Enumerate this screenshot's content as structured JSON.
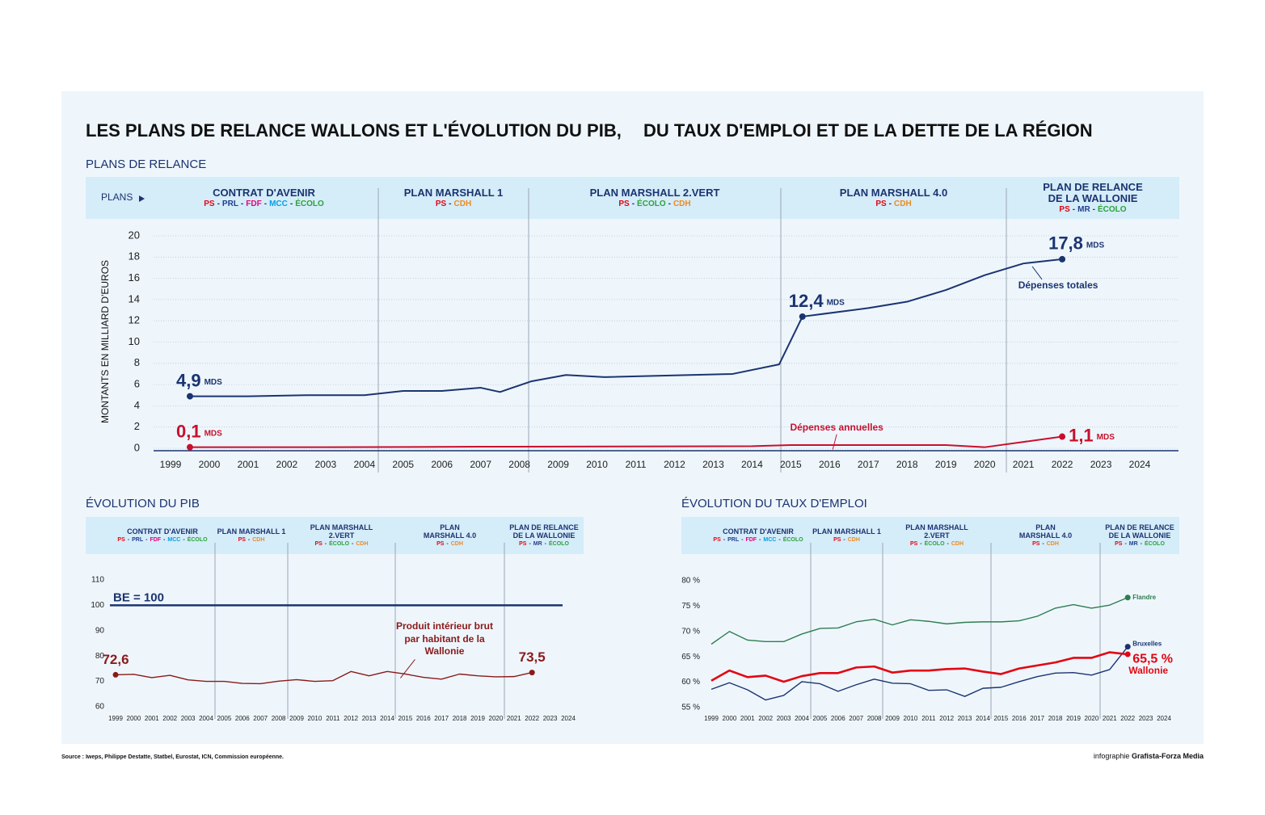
{
  "title": [
    "LES PLANS DE RELANCE WALLONS ET L'ÉVOLUTION DU PIB,",
    "DU TAUX D'EMPLOI ET DE LA DETTE DE LA RÉGION"
  ],
  "plans_label": "PLANS",
  "separator": "-",
  "plans": [
    {
      "name": "CONTRAT D'AVENIR",
      "parties": [
        {
          "name": "PS",
          "color": "#e30613"
        },
        {
          "name": "PRL",
          "color": "#1f3f8f"
        },
        {
          "name": "FDF",
          "color": "#e6007e"
        },
        {
          "name": "MCC",
          "color": "#00a0e3"
        },
        {
          "name": "ÉCOLO",
          "color": "#2aa33a"
        }
      ]
    },
    {
      "name": "PLAN MARSHALL 1",
      "parties": [
        {
          "name": "PS",
          "color": "#e30613"
        },
        {
          "name": "CDH",
          "color": "#f08a1c"
        }
      ]
    },
    {
      "name": "PLAN MARSHALL 2.VERT",
      "parties": [
        {
          "name": "PS",
          "color": "#e30613"
        },
        {
          "name": "ÉCOLO",
          "color": "#2aa33a"
        },
        {
          "name": "CDH",
          "color": "#f08a1c"
        }
      ]
    },
    {
      "name": "PLAN MARSHALL 4.0",
      "parties": [
        {
          "name": "PS",
          "color": "#e30613"
        },
        {
          "name": "CDH",
          "color": "#f08a1c"
        }
      ]
    },
    {
      "name": "PLAN DE RELANCE DE LA WALLONIE",
      "parties": [
        {
          "name": "PS",
          "color": "#e30613"
        },
        {
          "name": "MR",
          "color": "#1f3f8f"
        },
        {
          "name": "ÉCOLO",
          "color": "#2aa33a"
        }
      ]
    }
  ],
  "source": "Source : Iweps, Philippe Destatte, Statbel, Eurostat, ICN, Commission européenne.",
  "credit": [
    "infographie",
    "Grafista-Forza Media"
  ],
  "chart_data": [
    {
      "type": "line",
      "section": "PLANS DE RELANCE",
      "ylabel": "MONTANTS EN MILLIARD D'EUROS",
      "unit_label": "MDS",
      "grid": true,
      "xlim": [
        1999,
        2024
      ],
      "xticks": [
        1999,
        2000,
        2001,
        2002,
        2003,
        2004,
        2005,
        2006,
        2007,
        2008,
        2009,
        2010,
        2011,
        2012,
        2013,
        2014,
        2015,
        2016,
        2017,
        2018,
        2019,
        2020,
        2021,
        2022,
        2023,
        2024
      ],
      "ylim": [
        0,
        20
      ],
      "yticks": [
        0,
        2,
        4,
        6,
        8,
        10,
        12,
        14,
        16,
        18,
        20
      ],
      "series": [
        {
          "name": "Dépenses totales",
          "color": "#1b3470",
          "x": [
            1999.5,
            2001,
            2002.5,
            2004,
            2005,
            2006,
            2007,
            2007.5,
            2008.3,
            2009.2,
            2010.2,
            2013.5,
            2014.7,
            2015.3,
            2017,
            2018,
            2019,
            2020,
            2021,
            2022
          ],
          "values": [
            4.9,
            4.9,
            5.0,
            5.0,
            5.4,
            5.4,
            5.7,
            5.3,
            6.3,
            6.9,
            6.7,
            7.0,
            7.9,
            12.4,
            13.2,
            13.8,
            14.9,
            16.3,
            17.4,
            17.8
          ],
          "value_labels": [
            "4,9",
            null,
            null,
            null,
            null,
            null,
            null,
            null,
            null,
            null,
            null,
            null,
            null,
            "12,4",
            null,
            null,
            null,
            null,
            null,
            "17,8"
          ]
        },
        {
          "name": "Dépenses annuelles",
          "color": "#c8102e",
          "x": [
            1999.5,
            2003,
            2007,
            2014,
            2015,
            2019,
            2020,
            2021,
            2022
          ],
          "values": [
            0.1,
            0.1,
            0.15,
            0.2,
            0.3,
            0.3,
            0.1,
            0.6,
            1.1
          ],
          "value_labels": [
            "0,1",
            null,
            null,
            null,
            null,
            null,
            null,
            null,
            "1,1"
          ]
        }
      ]
    },
    {
      "type": "line",
      "section": "ÉVOLUTION DU PIB",
      "grid": false,
      "xlim": [
        1999,
        2024
      ],
      "xticks": [
        1999,
        2000,
        2001,
        2002,
        2003,
        2004,
        2005,
        2006,
        2007,
        2008,
        2009,
        2010,
        2011,
        2012,
        2013,
        2014,
        2015,
        2016,
        2017,
        2018,
        2019,
        2020,
        2021,
        2022,
        2023,
        2024
      ],
      "ylim": [
        60,
        110
      ],
      "yticks": [
        60,
        70,
        80,
        90,
        100,
        110
      ],
      "reference": {
        "value": 100,
        "label": "BE = 100",
        "color": "#1b3470"
      },
      "x": [
        1999,
        2000,
        2001,
        2002,
        2003,
        2004,
        2005,
        2006,
        2007,
        2008,
        2009,
        2010,
        2011,
        2012,
        2013,
        2014,
        2015,
        2016,
        2017,
        2018,
        2019,
        2020,
        2021,
        2022
      ],
      "series": [
        {
          "name": "Produit intérieur brut par habitant de la Wallonie",
          "color": "#8b1a1a",
          "values": [
            72.6,
            72.8,
            71.5,
            72.4,
            70.6,
            70.0,
            70.0,
            69.2,
            69.1,
            70.1,
            70.7,
            70.0,
            70.3,
            73.9,
            72.2,
            73.9,
            72.9,
            71.6,
            70.9,
            72.9,
            72.2,
            71.8,
            71.9,
            73.5
          ],
          "value_labels": [
            "72,6",
            null,
            null,
            null,
            null,
            null,
            null,
            null,
            null,
            null,
            null,
            null,
            null,
            null,
            null,
            null,
            null,
            null,
            null,
            null,
            null,
            null,
            null,
            "73,5"
          ]
        }
      ]
    },
    {
      "type": "line",
      "section": "ÉVOLUTION DU TAUX D'EMPLOI",
      "grid": false,
      "xlim": [
        1999,
        2024
      ],
      "xticks": [
        1999,
        2000,
        2001,
        2002,
        2003,
        2004,
        2005,
        2006,
        2007,
        2008,
        2009,
        2010,
        2011,
        2012,
        2013,
        2014,
        2015,
        2016,
        2017,
        2018,
        2019,
        2020,
        2021,
        2022,
        2023,
        2024
      ],
      "ylim": [
        55,
        80
      ],
      "yticks": [
        {
          "value": 55,
          "label": "55 %"
        },
        {
          "value": 60,
          "label": "60 %"
        },
        {
          "value": 65,
          "label": "65 %"
        },
        {
          "value": 70,
          "label": "70 %"
        },
        {
          "value": 75,
          "label": "75 %"
        },
        {
          "value": 80,
          "label": "80 %"
        }
      ],
      "x": [
        1999,
        2000,
        2001,
        2002,
        2003,
        2004,
        2005,
        2006,
        2007,
        2008,
        2009,
        2010,
        2011,
        2012,
        2013,
        2014,
        2015,
        2016,
        2017,
        2018,
        2019,
        2020,
        2021,
        2022
      ],
      "series": [
        {
          "name": "Flandre",
          "color": "#2e7d4f",
          "values": [
            67.5,
            70.0,
            68.3,
            68.0,
            68.0,
            69.5,
            70.6,
            70.7,
            71.9,
            72.4,
            71.3,
            72.3,
            72.0,
            71.5,
            71.8,
            71.9,
            71.9,
            72.1,
            73.0,
            74.6,
            75.3,
            74.6,
            75.2,
            76.7
          ]
        },
        {
          "name": "Bruxelles",
          "color": "#1b3470",
          "values": [
            58.6,
            59.9,
            58.5,
            56.5,
            57.4,
            60.1,
            59.7,
            58.2,
            59.5,
            60.6,
            59.8,
            59.7,
            58.4,
            58.5,
            57.2,
            58.8,
            59.0,
            60.1,
            61.1,
            61.8,
            61.9,
            61.4,
            62.5,
            67.0
          ]
        },
        {
          "name": "Wallonie",
          "color": "#e30613",
          "values": [
            60.3,
            62.3,
            61.0,
            61.3,
            60.1,
            61.2,
            61.8,
            61.8,
            62.9,
            63.1,
            61.9,
            62.3,
            62.3,
            62.6,
            62.7,
            62.1,
            61.6,
            62.7,
            63.3,
            63.9,
            64.8,
            64.8,
            65.9,
            65.5
          ],
          "value_labels": [
            null,
            null,
            null,
            null,
            null,
            null,
            null,
            null,
            null,
            null,
            null,
            null,
            null,
            null,
            null,
            null,
            null,
            null,
            null,
            null,
            null,
            null,
            null,
            "65,5 %"
          ]
        }
      ]
    }
  ]
}
